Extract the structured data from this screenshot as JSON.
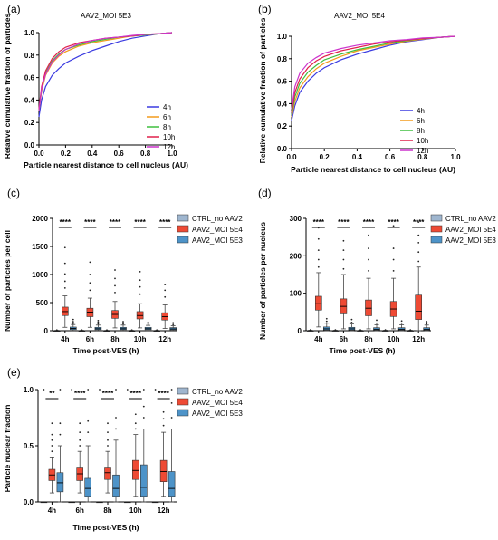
{
  "chart_data": [
    {
      "panel": "(a)",
      "type": "line",
      "title": "AAV2_MOI 5E3",
      "xlabel": "Particle nearest distance to cell nucleus (AU)",
      "ylabel": "Relative cumulative fraction of particles",
      "xlim": [
        0,
        1
      ],
      "ylim": [
        0,
        1
      ],
      "xticks": [
        "0.0",
        "0.2",
        "0.4",
        "0.6",
        "0.8",
        "1.0"
      ],
      "yticks": [
        "0.0",
        "0.2",
        "0.4",
        "0.6",
        "0.8",
        "1.0"
      ],
      "legend_position": "bottom-right",
      "x": [
        0,
        0.02,
        0.05,
        0.1,
        0.15,
        0.2,
        0.3,
        0.4,
        0.5,
        0.6,
        0.7,
        0.8,
        0.9,
        1.0
      ],
      "series": [
        {
          "name": "4h",
          "color": "#3a3ae0",
          "values": [
            0.25,
            0.4,
            0.52,
            0.62,
            0.68,
            0.73,
            0.79,
            0.84,
            0.88,
            0.92,
            0.95,
            0.97,
            0.99,
            1.0
          ]
        },
        {
          "name": "6h",
          "color": "#f39a1c",
          "values": [
            0.3,
            0.48,
            0.62,
            0.73,
            0.79,
            0.83,
            0.88,
            0.91,
            0.93,
            0.95,
            0.97,
            0.98,
            0.99,
            1.0
          ]
        },
        {
          "name": "8h",
          "color": "#3fbf3f",
          "values": [
            0.3,
            0.5,
            0.64,
            0.75,
            0.81,
            0.85,
            0.89,
            0.92,
            0.94,
            0.96,
            0.97,
            0.98,
            0.99,
            1.0
          ]
        },
        {
          "name": "10h",
          "color": "#e0204a",
          "values": [
            0.32,
            0.52,
            0.66,
            0.77,
            0.83,
            0.87,
            0.91,
            0.93,
            0.95,
            0.96,
            0.97,
            0.985,
            0.99,
            1.0
          ]
        },
        {
          "name": "12h",
          "color": "#cc33cc",
          "values": [
            0.3,
            0.5,
            0.63,
            0.74,
            0.8,
            0.85,
            0.9,
            0.93,
            0.95,
            0.96,
            0.975,
            0.985,
            0.99,
            1.0
          ]
        }
      ]
    },
    {
      "panel": "(b)",
      "type": "line",
      "title": "AAV2_MOI 5E4",
      "xlabel": "Particle nearest distance to cell nucleus (AU)",
      "ylabel": "Relative cumulative fraction of particles",
      "xlim": [
        0,
        1
      ],
      "ylim": [
        0,
        1
      ],
      "xticks": [
        "0.0",
        "0.2",
        "0.4",
        "0.6",
        "0.8",
        "1.0"
      ],
      "yticks": [
        "0.0",
        "0.2",
        "0.4",
        "0.6",
        "0.8",
        "1.0"
      ],
      "legend_position": "bottom-right",
      "x": [
        0,
        0.02,
        0.05,
        0.1,
        0.15,
        0.2,
        0.3,
        0.4,
        0.5,
        0.6,
        0.7,
        0.8,
        0.9,
        1.0
      ],
      "series": [
        {
          "name": "4h",
          "color": "#3a3ae0",
          "values": [
            0.25,
            0.38,
            0.5,
            0.6,
            0.67,
            0.72,
            0.79,
            0.84,
            0.88,
            0.92,
            0.95,
            0.97,
            0.99,
            1.0
          ]
        },
        {
          "name": "6h",
          "color": "#f39a1c",
          "values": [
            0.28,
            0.42,
            0.54,
            0.64,
            0.71,
            0.76,
            0.82,
            0.87,
            0.9,
            0.93,
            0.955,
            0.975,
            0.99,
            1.0
          ]
        },
        {
          "name": "8h",
          "color": "#3fbf3f",
          "values": [
            0.3,
            0.46,
            0.58,
            0.68,
            0.74,
            0.79,
            0.84,
            0.88,
            0.91,
            0.94,
            0.96,
            0.98,
            0.99,
            1.0
          ]
        },
        {
          "name": "10h",
          "color": "#e0204a",
          "values": [
            0.32,
            0.5,
            0.62,
            0.72,
            0.78,
            0.82,
            0.87,
            0.9,
            0.93,
            0.95,
            0.965,
            0.98,
            0.99,
            1.0
          ]
        },
        {
          "name": "12h",
          "color": "#cc33cc",
          "values": [
            0.35,
            0.55,
            0.67,
            0.76,
            0.81,
            0.85,
            0.89,
            0.92,
            0.94,
            0.96,
            0.97,
            0.985,
            0.99,
            1.0
          ]
        }
      ]
    },
    {
      "panel": "(c)",
      "type": "box",
      "xlabel": "Time post-VES (h)",
      "ylabel": "Number of particles per cell",
      "ylim": [
        0,
        2000
      ],
      "yticks": [
        "0",
        "500",
        "1000",
        "1500",
        "2000"
      ],
      "categories": [
        "4h",
        "6h",
        "8h",
        "10h",
        "12h"
      ],
      "significance": [
        "****",
        "****",
        "****",
        "****",
        "****"
      ],
      "legend_position": "top-right",
      "series": [
        {
          "name": "CTRL_no AAV2",
          "color": "#9fb6cf",
          "boxes": [
            [
              0,
              0,
              0,
              2,
              5
            ],
            [
              0,
              0,
              0,
              2,
              5
            ],
            [
              0,
              0,
              0,
              2,
              5
            ],
            [
              0,
              0,
              0,
              2,
              5
            ],
            [
              0,
              0,
              0,
              2,
              5
            ]
          ],
          "outliers": [
            [
              8,
              12
            ],
            [
              8,
              12
            ],
            [
              8,
              12
            ],
            [
              8,
              12
            ],
            [
              8,
              12
            ]
          ]
        },
        {
          "name": "AAV2_MOI 5E4",
          "color": "#ee4a34",
          "boxes": [
            [
              60,
              270,
              340,
              420,
              620
            ],
            [
              60,
              250,
              330,
              400,
              580
            ],
            [
              50,
              220,
              290,
              360,
              520
            ],
            [
              50,
              210,
              270,
              340,
              480
            ],
            [
              40,
              190,
              250,
              320,
              460
            ]
          ],
          "outliers": [
            [
              760,
              880,
              1010,
              1200,
              1480
            ],
            [
              720,
              850,
              1000,
              1220
            ],
            [
              680,
              800,
              930,
              1080
            ],
            [
              650,
              780,
              900,
              1050
            ],
            [
              600,
              720,
              820
            ]
          ]
        },
        {
          "name": "AAV2_MOI 5E3",
          "color": "#4d93c8",
          "boxes": [
            [
              5,
              20,
              40,
              65,
              110
            ],
            [
              5,
              18,
              35,
              60,
              100
            ],
            [
              5,
              18,
              35,
              60,
              100
            ],
            [
              5,
              18,
              35,
              60,
              95
            ],
            [
              5,
              16,
              32,
              55,
              90
            ]
          ],
          "outliers": [
            [
              130,
              160,
              200
            ],
            [
              120,
              150,
              180
            ],
            [
              120,
              160
            ],
            [
              115,
              150
            ],
            [
              110,
              140
            ]
          ]
        }
      ]
    },
    {
      "panel": "(d)",
      "type": "box",
      "xlabel": "Time post-VES (h)",
      "ylabel": "Number of particles per nucleus",
      "ylim": [
        0,
        300
      ],
      "yticks": [
        "0",
        "100",
        "200",
        "300"
      ],
      "categories": [
        "4h",
        "6h",
        "8h",
        "10h",
        "12h"
      ],
      "significance": [
        "****",
        "****",
        "****",
        "****",
        "****"
      ],
      "legend_position": "top-right",
      "series": [
        {
          "name": "CTRL_no AAV2",
          "color": "#9fb6cf",
          "boxes": [
            [
              0,
              0,
              0,
              0.5,
              1
            ],
            [
              0,
              0,
              0,
              0.5,
              1
            ],
            [
              0,
              0,
              0,
              0.5,
              1
            ],
            [
              0,
              0,
              0,
              0.5,
              1
            ],
            [
              0,
              0,
              0,
              0.5,
              1
            ]
          ],
          "outliers": [
            [
              2
            ],
            [
              2
            ],
            [
              2
            ],
            [
              2
            ],
            [
              2
            ]
          ]
        },
        {
          "name": "AAV2_MOI 5E4",
          "color": "#ee4a34",
          "boxes": [
            [
              10,
              55,
              72,
              92,
              155
            ],
            [
              5,
              45,
              65,
              85,
              150
            ],
            [
              5,
              40,
              60,
              82,
              140
            ],
            [
              5,
              38,
              58,
              78,
              140
            ],
            [
              0,
              30,
              52,
              95,
              170
            ]
          ],
          "outliers": [
            [
              170,
              190,
              215,
              245,
              275
            ],
            [
              165,
              190,
              215,
              240
            ],
            [
              160,
              190,
              220,
              255
            ],
            [
              160,
              190,
              220,
              280
            ],
            [
              185,
              210,
              235,
              255,
              290
            ]
          ]
        },
        {
          "name": "AAV2_MOI 5E3",
          "color": "#4d93c8",
          "boxes": [
            [
              0,
              2,
              5,
              10,
              20
            ],
            [
              0,
              2,
              5,
              9,
              18
            ],
            [
              0,
              2,
              4,
              8,
              16
            ],
            [
              0,
              2,
              4,
              8,
              16
            ],
            [
              0,
              2,
              4,
              8,
              15
            ]
          ],
          "outliers": [
            [
              25,
              32
            ],
            [
              22,
              30
            ],
            [
              20,
              28
            ],
            [
              20,
              26
            ],
            [
              18,
              24
            ]
          ]
        }
      ]
    },
    {
      "panel": "(e)",
      "type": "box",
      "xlabel": "Time post-VES (h)",
      "ylabel": "Particle nuclear fraction",
      "ylim": [
        0,
        1
      ],
      "yticks": [
        "0.0",
        "0.5",
        "1.0"
      ],
      "categories": [
        "4h",
        "6h",
        "8h",
        "10h",
        "12h"
      ],
      "significance": [
        "**",
        "****",
        "****",
        "****",
        "****"
      ],
      "legend_position": "top-right",
      "series": [
        {
          "name": "CTRL_no AAV2",
          "color": "#9fb6cf",
          "boxes": [
            [
              0,
              0,
              0,
              0,
              0
            ],
            [
              0,
              0,
              0,
              0,
              0
            ],
            [
              0,
              0,
              0,
              0,
              0
            ],
            [
              0,
              0,
              0,
              0,
              0
            ],
            [
              0,
              0,
              0,
              0,
              0
            ]
          ],
          "outliers": [
            [
              1.0
            ],
            [
              1.0
            ],
            [
              1.0
            ],
            [
              1.0
            ],
            [
              1.0
            ]
          ]
        },
        {
          "name": "AAV2_MOI 5E4",
          "color": "#ee4a34",
          "boxes": [
            [
              0.08,
              0.19,
              0.24,
              0.29,
              0.4
            ],
            [
              0.08,
              0.19,
              0.25,
              0.31,
              0.45
            ],
            [
              0.08,
              0.2,
              0.26,
              0.31,
              0.45
            ],
            [
              0.05,
              0.2,
              0.28,
              0.37,
              0.6
            ],
            [
              0.05,
              0.18,
              0.27,
              0.37,
              0.62
            ]
          ],
          "outliers": [
            [
              0.45,
              0.5,
              0.55,
              0.6,
              0.7
            ],
            [
              0.5,
              0.55,
              0.62,
              0.7
            ],
            [
              0.5,
              0.55,
              0.62,
              0.7
            ],
            [
              0.65,
              0.7,
              0.78
            ],
            [
              0.68,
              0.74,
              0.8
            ]
          ]
        },
        {
          "name": "AAV2_MOI 5E3",
          "color": "#4d93c8",
          "boxes": [
            [
              0,
              0.09,
              0.17,
              0.26,
              0.5
            ],
            [
              0,
              0.05,
              0.12,
              0.21,
              0.5
            ],
            [
              0,
              0.05,
              0.12,
              0.24,
              0.55
            ],
            [
              0,
              0.05,
              0.13,
              0.33,
              0.65
            ],
            [
              0,
              0.05,
              0.12,
              0.27,
              0.65
            ]
          ],
          "outliers": [
            [
              0.6,
              0.7,
              1.0
            ],
            [
              0.62,
              0.72,
              1.0
            ],
            [
              0.65,
              0.75,
              1.0
            ],
            [
              0.75,
              0.85,
              1.0
            ],
            [
              0.75,
              0.88,
              1.0
            ]
          ]
        }
      ]
    }
  ]
}
